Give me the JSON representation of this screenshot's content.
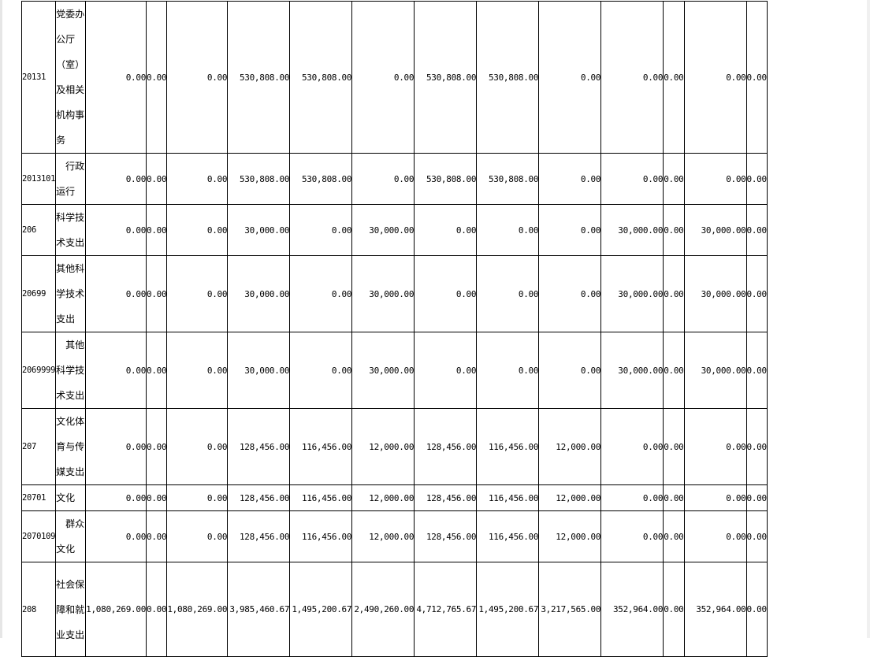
{
  "rows": [
    {
      "code": "20131",
      "name": "党委办公厅（室）及相关机构事务",
      "sub": false,
      "values": [
        "0.00",
        "0.00",
        "0.00",
        "530,808.00",
        "530,808.00",
        "0.00",
        "530,808.00",
        "530,808.00",
        "0.00",
        "0.00",
        "0.00",
        "0.00",
        "0.00"
      ]
    },
    {
      "code": "2013101",
      "name": "行政运行",
      "sub": true,
      "values": [
        "0.00",
        "0.00",
        "0.00",
        "530,808.00",
        "530,808.00",
        "0.00",
        "530,808.00",
        "530,808.00",
        "0.00",
        "0.00",
        "0.00",
        "0.00",
        "0.00"
      ]
    },
    {
      "code": "206",
      "name": "科学技术支出",
      "sub": false,
      "values": [
        "0.00",
        "0.00",
        "0.00",
        "30,000.00",
        "0.00",
        "30,000.00",
        "0.00",
        "0.00",
        "0.00",
        "30,000.00",
        "0.00",
        "30,000.00",
        "0.00"
      ]
    },
    {
      "code": "20699",
      "name": "其他科学技术支出",
      "sub": false,
      "values": [
        "0.00",
        "0.00",
        "0.00",
        "30,000.00",
        "0.00",
        "30,000.00",
        "0.00",
        "0.00",
        "0.00",
        "30,000.00",
        "0.00",
        "30,000.00",
        "0.00"
      ]
    },
    {
      "code": "2069999",
      "name": "其他科学技术支出",
      "sub": true,
      "values": [
        "0.00",
        "0.00",
        "0.00",
        "30,000.00",
        "0.00",
        "30,000.00",
        "0.00",
        "0.00",
        "0.00",
        "30,000.00",
        "0.00",
        "30,000.00",
        "0.00"
      ]
    },
    {
      "code": "207",
      "name": "文化体育与传媒支出",
      "sub": false,
      "values": [
        "0.00",
        "0.00",
        "0.00",
        "128,456.00",
        "116,456.00",
        "12,000.00",
        "128,456.00",
        "116,456.00",
        "12,000.00",
        "0.00",
        "0.00",
        "0.00",
        "0.00"
      ]
    },
    {
      "code": "20701",
      "name": "文化",
      "sub": false,
      "values": [
        "0.00",
        "0.00",
        "0.00",
        "128,456.00",
        "116,456.00",
        "12,000.00",
        "128,456.00",
        "116,456.00",
        "12,000.00",
        "0.00",
        "0.00",
        "0.00",
        "0.00"
      ]
    },
    {
      "code": "2070109",
      "name": "群众文化",
      "sub": true,
      "values": [
        "0.00",
        "0.00",
        "0.00",
        "128,456.00",
        "116,456.00",
        "12,000.00",
        "128,456.00",
        "116,456.00",
        "12,000.00",
        "0.00",
        "0.00",
        "0.00",
        "0.00"
      ]
    },
    {
      "code": "208",
      "name": "社会保障和就业支出",
      "sub": false,
      "values": [
        "1,080,269.00",
        "0.00",
        "1,080,269.00",
        "3,985,460.67",
        "1,495,200.67",
        "2,490,260.00",
        "4,712,765.67",
        "1,495,200.67",
        "3,217,565.00",
        "352,964.00",
        "0.00",
        "352,964.00",
        "0.00"
      ]
    }
  ]
}
